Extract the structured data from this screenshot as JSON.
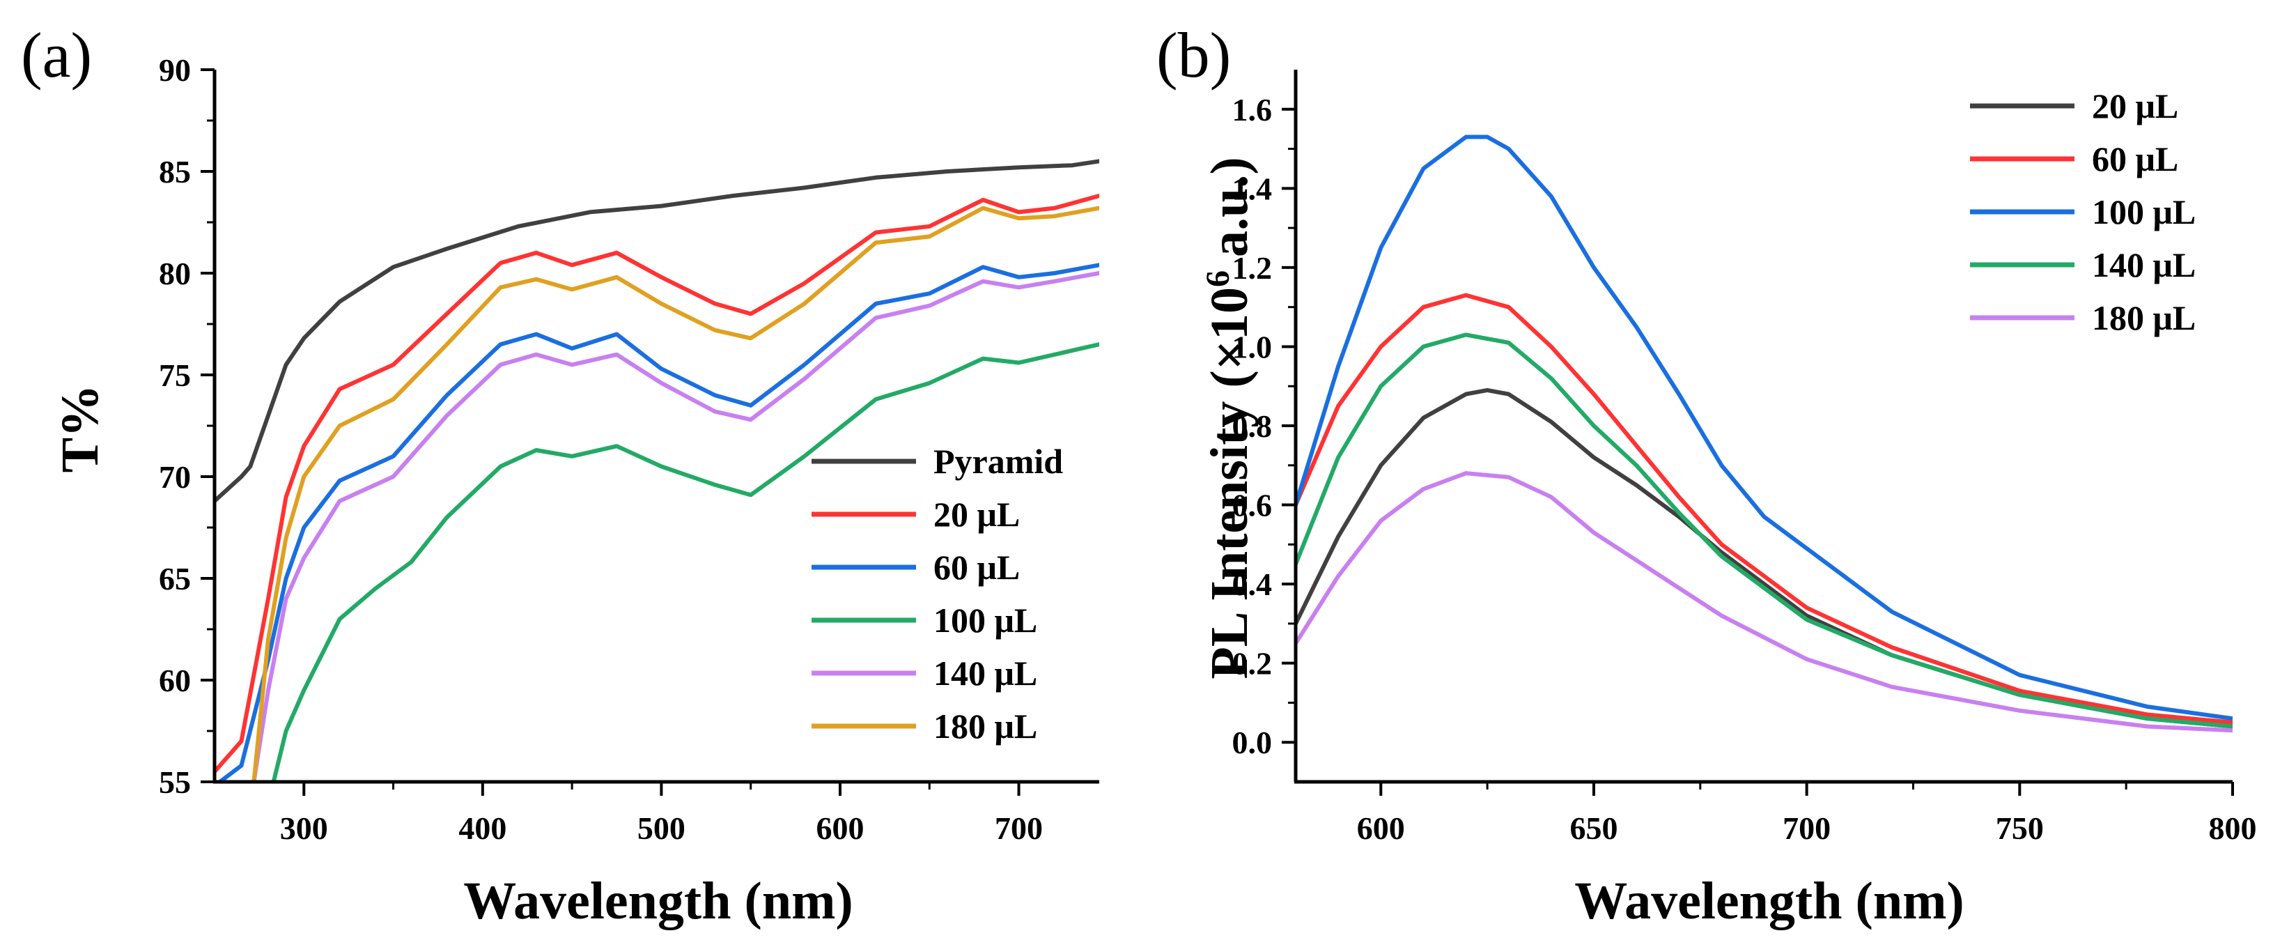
{
  "figure": {
    "panels": [
      "(a)",
      "(b)"
    ]
  },
  "chart_data": [
    {
      "id": "panel-a",
      "panel_label": "(a)",
      "type": "line",
      "title": "",
      "xlabel": "Wavelength (nm)",
      "ylabel": "T%",
      "xlim": [
        250,
        745
      ],
      "ylim": [
        55,
        90
      ],
      "xticks": [
        300,
        400,
        500,
        600,
        700
      ],
      "yticks": [
        55,
        60,
        65,
        70,
        75,
        80,
        85,
        90
      ],
      "legend_position": "bottom-right",
      "series": [
        {
          "name": "Pyramid",
          "color": "#404040",
          "x": [
            250,
            265,
            270,
            280,
            290,
            300,
            320,
            350,
            380,
            420,
            460,
            500,
            540,
            580,
            620,
            660,
            700,
            730,
            745
          ],
          "y": [
            68.8,
            70.0,
            70.5,
            73.0,
            75.5,
            76.8,
            78.6,
            80.3,
            81.2,
            82.3,
            83.0,
            83.3,
            83.8,
            84.2,
            84.7,
            85.0,
            85.2,
            85.3,
            85.5
          ]
        },
        {
          "name": "20 μL",
          "color": "#ff3333",
          "x": [
            250,
            265,
            280,
            290,
            300,
            320,
            350,
            380,
            410,
            430,
            450,
            475,
            500,
            530,
            550,
            580,
            620,
            650,
            680,
            700,
            720,
            745
          ],
          "y": [
            55.5,
            57.0,
            64.0,
            69.0,
            71.5,
            74.3,
            75.5,
            78.0,
            80.5,
            81.0,
            80.4,
            81.0,
            79.8,
            78.5,
            78.0,
            79.5,
            82.0,
            82.3,
            83.6,
            83.0,
            83.2,
            83.8
          ]
        },
        {
          "name": "60 μL",
          "color": "#1a6fe0",
          "x": [
            250,
            265,
            280,
            290,
            300,
            320,
            350,
            380,
            410,
            430,
            450,
            475,
            500,
            530,
            550,
            580,
            620,
            650,
            680,
            700,
            720,
            745
          ],
          "y": [
            54.8,
            55.8,
            61.0,
            65.0,
            67.5,
            69.8,
            71.0,
            74.0,
            76.5,
            77.0,
            76.3,
            77.0,
            75.3,
            74.0,
            73.5,
            75.5,
            78.5,
            79.0,
            80.3,
            79.8,
            80.0,
            80.4
          ]
        },
        {
          "name": "100 μL",
          "color": "#22aa66",
          "x": [
            283,
            290,
            300,
            320,
            340,
            360,
            380,
            410,
            430,
            450,
            475,
            500,
            530,
            550,
            580,
            620,
            650,
            680,
            700,
            720,
            745
          ],
          "y": [
            55.0,
            57.5,
            59.5,
            63.0,
            64.5,
            65.8,
            68.0,
            70.5,
            71.3,
            71.0,
            71.5,
            70.5,
            69.6,
            69.1,
            71.0,
            73.8,
            74.6,
            75.8,
            75.6,
            76.0,
            76.5
          ]
        },
        {
          "name": "140 μL",
          "color": "#c880f0",
          "x": [
            272,
            280,
            290,
            300,
            320,
            350,
            380,
            410,
            430,
            450,
            475,
            500,
            530,
            550,
            580,
            620,
            650,
            680,
            700,
            720,
            745
          ],
          "y": [
            55.0,
            59.5,
            64.0,
            66.0,
            68.8,
            70.0,
            73.0,
            75.5,
            76.0,
            75.5,
            76.0,
            74.6,
            73.2,
            72.8,
            74.8,
            77.8,
            78.4,
            79.6,
            79.3,
            79.6,
            80.0
          ]
        },
        {
          "name": "180 μL",
          "color": "#e0a020",
          "x": [
            272,
            280,
            290,
            300,
            320,
            350,
            380,
            410,
            430,
            450,
            475,
            500,
            530,
            550,
            580,
            620,
            650,
            680,
            700,
            720,
            745
          ],
          "y": [
            55.0,
            62.0,
            67.0,
            70.0,
            72.5,
            73.8,
            76.5,
            79.3,
            79.7,
            79.2,
            79.8,
            78.5,
            77.2,
            76.8,
            78.5,
            81.5,
            81.8,
            83.2,
            82.7,
            82.8,
            83.2
          ]
        }
      ]
    },
    {
      "id": "panel-b",
      "panel_label": "(b)",
      "type": "line",
      "title": "",
      "xlabel": "Wavelength (nm)",
      "ylabel": "PL Intensity (×10",
      "ylabel_superscript": "6",
      "ylabel_suffix": " a.u.)",
      "xlim": [
        580,
        800
      ],
      "ylim": [
        -0.1,
        1.7
      ],
      "xticks": [
        600,
        650,
        700,
        750,
        800
      ],
      "ytick_labels": [
        "0.0",
        "0.2",
        "0.4",
        "0.6",
        "0.8",
        "1.0",
        "1.2",
        "1.4",
        "1.6"
      ],
      "yticks": [
        0.0,
        0.2,
        0.4,
        0.6,
        0.8,
        1.0,
        1.2,
        1.4,
        1.6
      ],
      "legend_position": "top-right",
      "series": [
        {
          "name": "20 μL",
          "color": "#404040",
          "x": [
            580,
            590,
            600,
            610,
            620,
            625,
            630,
            640,
            650,
            660,
            670,
            680,
            700,
            720,
            750,
            780,
            800
          ],
          "y": [
            0.3,
            0.52,
            0.7,
            0.82,
            0.88,
            0.89,
            0.88,
            0.81,
            0.72,
            0.65,
            0.57,
            0.48,
            0.32,
            0.22,
            0.12,
            0.06,
            0.04
          ]
        },
        {
          "name": "60 μL",
          "color": "#ff3333",
          "x": [
            580,
            590,
            600,
            610,
            620,
            630,
            640,
            650,
            660,
            670,
            680,
            700,
            720,
            750,
            780,
            800
          ],
          "y": [
            0.6,
            0.85,
            1.0,
            1.1,
            1.13,
            1.1,
            1.0,
            0.88,
            0.75,
            0.62,
            0.5,
            0.34,
            0.24,
            0.13,
            0.07,
            0.05
          ]
        },
        {
          "name": "100 μL",
          "color": "#1a6fe0",
          "x": [
            580,
            590,
            600,
            610,
            620,
            625,
            630,
            640,
            650,
            660,
            670,
            680,
            690,
            700,
            720,
            750,
            780,
            800
          ],
          "y": [
            0.6,
            0.95,
            1.25,
            1.45,
            1.53,
            1.53,
            1.5,
            1.38,
            1.2,
            1.05,
            0.88,
            0.7,
            0.57,
            0.49,
            0.33,
            0.17,
            0.09,
            0.06
          ]
        },
        {
          "name": "140 μL",
          "color": "#22aa66",
          "x": [
            580,
            590,
            600,
            610,
            620,
            630,
            640,
            650,
            660,
            670,
            680,
            700,
            720,
            750,
            780,
            800
          ],
          "y": [
            0.45,
            0.72,
            0.9,
            1.0,
            1.03,
            1.01,
            0.92,
            0.8,
            0.7,
            0.58,
            0.47,
            0.31,
            0.22,
            0.12,
            0.06,
            0.04
          ]
        },
        {
          "name": "180 μL",
          "color": "#c880f0",
          "x": [
            580,
            590,
            600,
            610,
            620,
            630,
            640,
            650,
            660,
            670,
            680,
            700,
            720,
            750,
            780,
            800
          ],
          "y": [
            0.25,
            0.42,
            0.56,
            0.64,
            0.68,
            0.67,
            0.62,
            0.53,
            0.46,
            0.39,
            0.32,
            0.21,
            0.14,
            0.08,
            0.04,
            0.03
          ]
        }
      ]
    }
  ]
}
